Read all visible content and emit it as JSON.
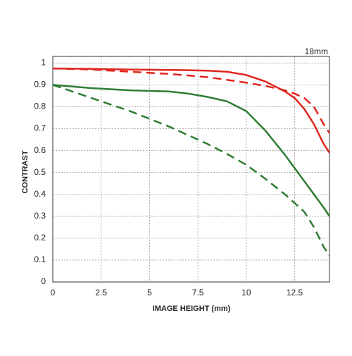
{
  "chart_data": {
    "type": "line",
    "title": "18mm",
    "x_label": "IMAGE HEIGHT (mm)",
    "y_label": "CONTRAST",
    "x": [
      0,
      2,
      4,
      6,
      7,
      8,
      9,
      10,
      11,
      12,
      12.5,
      13,
      13.5,
      14,
      14.3
    ],
    "series": [
      {
        "color": "#e0261e",
        "style": "solid",
        "values": [
          0.975,
          0.973,
          0.97,
          0.968,
          0.967,
          0.965,
          0.96,
          0.945,
          0.915,
          0.87,
          0.84,
          0.79,
          0.72,
          0.63,
          0.59
        ]
      },
      {
        "color": "#e0261e",
        "style": "dashed",
        "values": [
          0.975,
          0.97,
          0.96,
          0.95,
          0.943,
          0.935,
          0.923,
          0.91,
          0.895,
          0.875,
          0.86,
          0.84,
          0.8,
          0.72,
          0.68
        ]
      },
      {
        "color": "#2e7d32",
        "style": "solid",
        "values": [
          0.9,
          0.885,
          0.875,
          0.87,
          0.86,
          0.845,
          0.825,
          0.78,
          0.69,
          0.58,
          0.52,
          0.46,
          0.4,
          0.34,
          0.3
        ]
      },
      {
        "color": "#2e7d32",
        "style": "dashed",
        "values": [
          0.9,
          0.84,
          0.78,
          0.71,
          0.67,
          0.63,
          0.585,
          0.535,
          0.47,
          0.4,
          0.36,
          0.32,
          0.25,
          0.16,
          0.12
        ]
      }
    ],
    "xlim": [
      0,
      14.3
    ],
    "xticks": [
      0,
      2.5,
      5,
      7.5,
      10,
      12.5
    ],
    "ylim": [
      0,
      1.03
    ],
    "yticks": [
      0,
      0.1,
      0.2,
      0.3,
      0.4,
      0.5,
      0.6,
      0.7,
      0.8,
      0.9,
      1
    ],
    "grid": true
  }
}
